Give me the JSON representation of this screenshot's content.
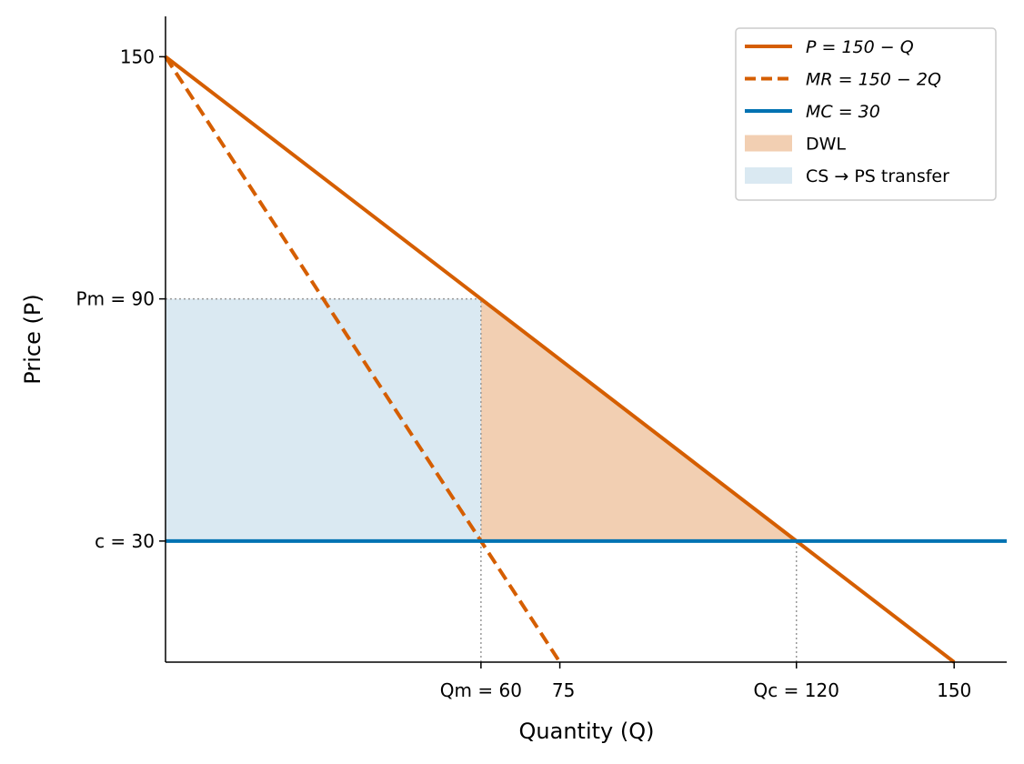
{
  "chart_data": {
    "type": "line",
    "xlabel": "Quantity (Q)",
    "ylabel": "Price (P)",
    "xlim": [
      0,
      160
    ],
    "ylim": [
      0,
      160
    ],
    "grid": false,
    "legend_placement": "top-right",
    "series": [
      {
        "name": "P = 150 − Q",
        "style": "solid",
        "color": "#d55e00",
        "points": [
          [
            0,
            150
          ],
          [
            150,
            0
          ]
        ]
      },
      {
        "name": "MR = 150 − 2Q",
        "style": "dashed",
        "color": "#d55e00",
        "points": [
          [
            0,
            150
          ],
          [
            75,
            0
          ]
        ]
      },
      {
        "name": "MC = 30",
        "style": "solid",
        "color": "#0072b2",
        "points": [
          [
            0,
            30
          ],
          [
            160,
            30
          ]
        ]
      }
    ],
    "areas": [
      {
        "name": "DWL",
        "color": "#f2cfb2",
        "polygon": [
          [
            60,
            90
          ],
          [
            120,
            30
          ],
          [
            60,
            30
          ]
        ]
      },
      {
        "name": "CS → PS transfer",
        "color": "#dae9f2",
        "polygon": [
          [
            0,
            90
          ],
          [
            60,
            90
          ],
          [
            60,
            30
          ],
          [
            0,
            30
          ]
        ]
      }
    ],
    "reference_lines": [
      {
        "type": "h",
        "y": 90,
        "x_to": 60
      },
      {
        "type": "v",
        "x": 60,
        "y_to": 90
      },
      {
        "type": "v",
        "x": 120,
        "y_to": 30
      }
    ],
    "xticks": [
      {
        "value": 60,
        "label": "Qm = 60"
      },
      {
        "value": 75,
        "label": "75"
      },
      {
        "value": 120,
        "label": "Qc = 120"
      },
      {
        "value": 150,
        "label": "150"
      }
    ],
    "yticks": [
      {
        "value": 150,
        "label": "150"
      },
      {
        "value": 90,
        "label": "Pm = 90"
      },
      {
        "value": 30,
        "label": "c = 30"
      }
    ]
  }
}
